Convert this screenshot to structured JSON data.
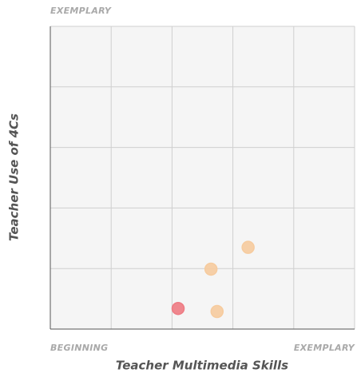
{
  "chart_data": {
    "type": "scatter",
    "x_label": "Teacher Multimedia Skills",
    "y_label": "Teacher Use of 4Cs",
    "xlim": [
      0,
      5
    ],
    "ylim": [
      0,
      5
    ],
    "xticks": [
      {
        "value": 0,
        "label": "BEGINNING"
      },
      {
        "value": 5,
        "label": "EXEMPLARY"
      }
    ],
    "yticks": [
      {
        "value": 5,
        "label": "EXEMPLARY"
      }
    ],
    "grid_divisions": 5,
    "series": [
      {
        "color": "#ee7b83",
        "x": [
          2.1
        ],
        "values": [
          0.34
        ]
      },
      {
        "color": "#f6cb9e",
        "x": [
          2.64,
          3.25,
          2.74
        ],
        "values": [
          0.99,
          1.35,
          0.29
        ]
      }
    ]
  }
}
